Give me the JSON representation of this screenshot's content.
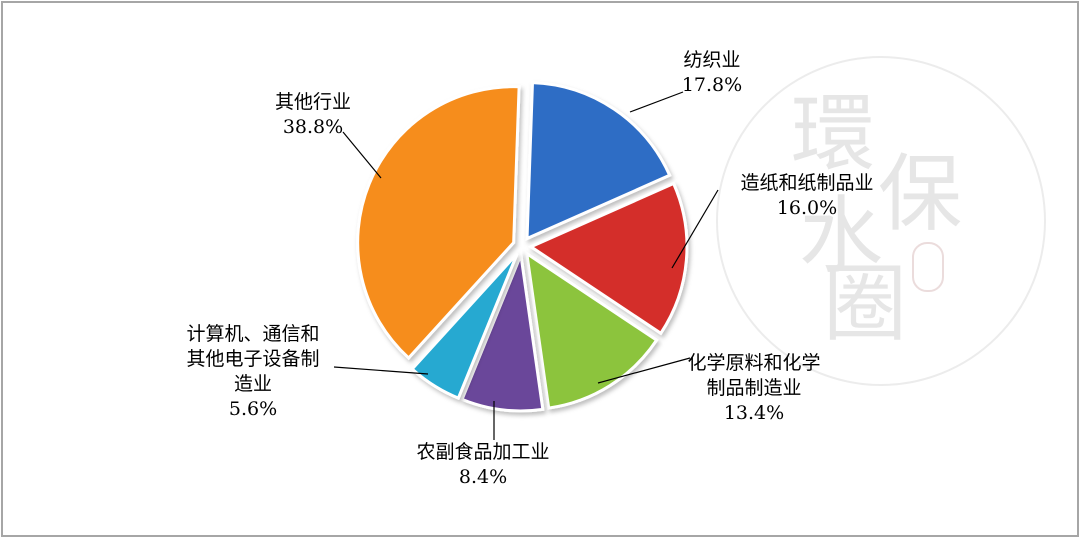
{
  "chart_data": {
    "type": "pie",
    "title": "",
    "slices": [
      {
        "name": "纺织业",
        "value": 17.8,
        "label": "17.8%",
        "color": "#2e6dc5"
      },
      {
        "name": "造纸和纸制品业",
        "value": 16.0,
        "label": "16.0%",
        "color": "#d42f2a"
      },
      {
        "name": "化学原料和化学制品制造业",
        "value": 13.4,
        "label": "13.4%",
        "color": "#8cc43d"
      },
      {
        "name": "农副食品加工业",
        "value": 8.4,
        "label": "8.4%",
        "color": "#6b469a"
      },
      {
        "name": "计算机、通信和其他电子设备制造业",
        "value": 5.6,
        "label": "5.6%",
        "color": "#25a9d1"
      },
      {
        "name": "其他行业",
        "value": 38.8,
        "label": "38.8%",
        "color": "#f68d1f"
      }
    ],
    "label_lines": [
      [
        "纺织业"
      ],
      [
        "造纸和纸制品业"
      ],
      [
        "化学原料和化学",
        "制品制造业"
      ],
      [
        "农副食品加工业"
      ],
      [
        "计算机、通信和",
        "其他电子设备制",
        "造业"
      ],
      [
        "其他行业"
      ]
    ]
  },
  "watermark": {
    "chars": [
      "環",
      "保",
      "水",
      "圈"
    ]
  }
}
